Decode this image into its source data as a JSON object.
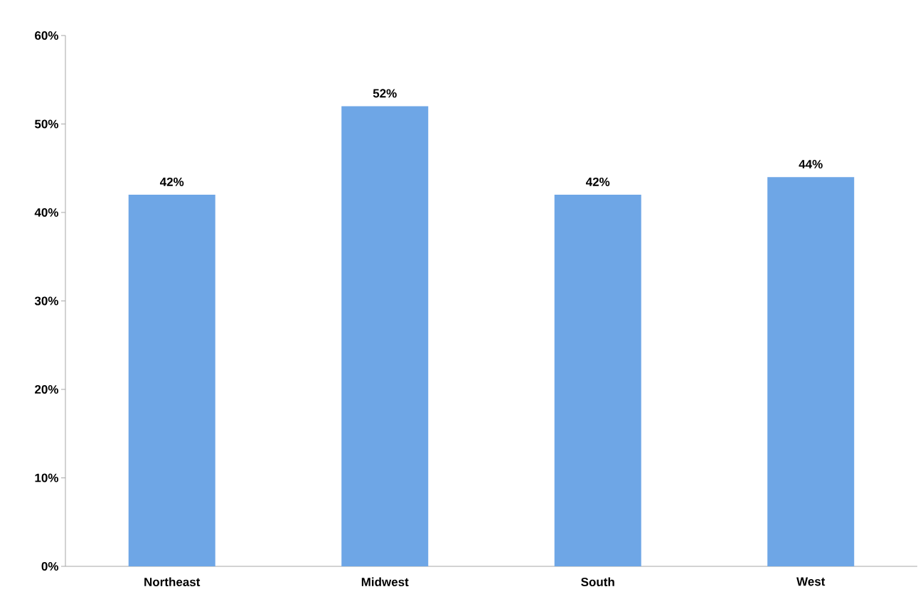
{
  "chart_data": {
    "type": "bar",
    "categories": [
      "Northeast",
      "Midwest",
      "South",
      "West"
    ],
    "values": [
      42,
      52,
      42,
      44
    ],
    "value_labels": [
      "42%",
      "52%",
      "42%",
      "44%"
    ],
    "color": "#6ea6e6",
    "ylim": [
      0,
      60
    ],
    "yticks": [
      {
        "value": 0,
        "label": "0%"
      },
      {
        "value": 10,
        "label": "10%"
      },
      {
        "value": 20,
        "label": "20%"
      },
      {
        "value": 30,
        "label": "30%"
      },
      {
        "value": 40,
        "label": "40%"
      },
      {
        "value": 50,
        "label": "50%"
      },
      {
        "value": 60,
        "label": "60%"
      }
    ]
  }
}
